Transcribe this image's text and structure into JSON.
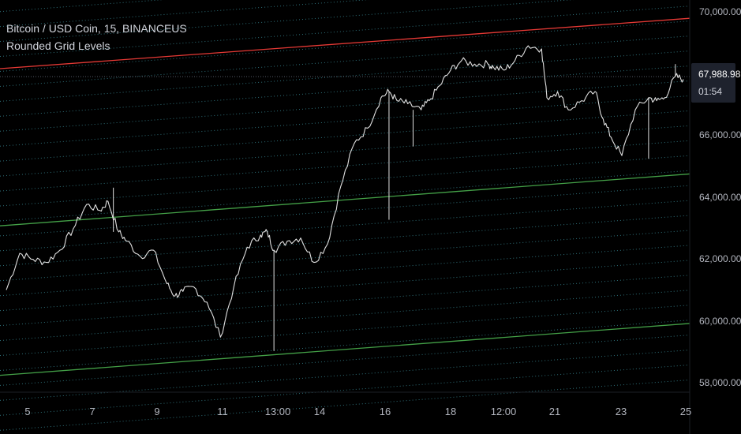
{
  "legend": {
    "symbol": "Bitcoin / USD Coin, 15, BINANCEUS",
    "indicator": "Rounded Grid Levels"
  },
  "price_axis": {
    "ticks": [
      "70,000.00",
      "66,000.00",
      "64,000.00",
      "62,000.00",
      "60,000.00",
      "58,000.00"
    ]
  },
  "last_price": {
    "value": "67,988.98",
    "countdown": "01:54"
  },
  "time_axis": {
    "ticks": [
      "5",
      "7",
      "9",
      "11",
      "13:00",
      "14",
      "16",
      "18",
      "12:00",
      "21",
      "23",
      "25"
    ]
  },
  "colors": {
    "background": "#000000",
    "price_line": "#e0e0e0",
    "grid_line": "#2e6f78",
    "upper_level": "#e53935",
    "lower_level": "#43a047",
    "text": "#b2b5be"
  },
  "chart_data": {
    "type": "line",
    "title": "Bitcoin / USD Coin, 15, BINANCEUS",
    "xlabel": "",
    "ylabel": "",
    "x_ticks": [
      "5",
      "7",
      "9",
      "11",
      "13:00",
      "14",
      "16",
      "18",
      "12:00",
      "21",
      "23",
      "25"
    ],
    "ylim": [
      57700,
      70500
    ],
    "y_ticks": [
      70000,
      66000,
      64000,
      62000,
      60000,
      58000
    ],
    "log_scale": false,
    "grid": false,
    "price_series": {
      "x": [
        0,
        0.5,
        1,
        1.5,
        2,
        2.5,
        3,
        3.5,
        3.8,
        4.2,
        4.5,
        5,
        5.5,
        6,
        6.3,
        6.6,
        7,
        7.5,
        8,
        8.5,
        9,
        9.5,
        9.75,
        10,
        10.5,
        11,
        11.5,
        12,
        12.5,
        13,
        13.5,
        14,
        14.3,
        14.6,
        15,
        15.5,
        15.8,
        16.2,
        16.6,
        17,
        17.5,
        18,
        18.2,
        18.6,
        19,
        19.5,
        20,
        20.2,
        20.6,
        21,
        21.5,
        22,
        22.3,
        22.6,
        23,
        23.5,
        24,
        24.3,
        24.6,
        25,
        25.3
      ],
      "y": [
        61000,
        62200,
        62000,
        61900,
        62300,
        63000,
        63800,
        63600,
        63900,
        62900,
        62600,
        62100,
        62300,
        61200,
        60800,
        60950,
        61100,
        60600,
        59450,
        61100,
        62400,
        62800,
        62900,
        62300,
        62600,
        62700,
        61900,
        62500,
        64400,
        65800,
        66300,
        67300,
        67500,
        67200,
        67100,
        66900,
        67200,
        67700,
        68200,
        68500,
        68400,
        68400,
        68300,
        68200,
        68500,
        69000,
        68900,
        67300,
        67500,
        66900,
        67200,
        67500,
        66600,
        66000,
        65400,
        66900,
        67300,
        67200,
        67300,
        68000,
        67900
      ]
    },
    "levels": [
      {
        "name": "upper",
        "y_start": 68250,
        "y_end": 69900
      },
      {
        "name": "middle",
        "y_start": 63100,
        "y_end": 64800
      },
      {
        "name": "lower",
        "y_start": 58200,
        "y_end": 59900
      }
    ],
    "last_value": 67988.98
  }
}
